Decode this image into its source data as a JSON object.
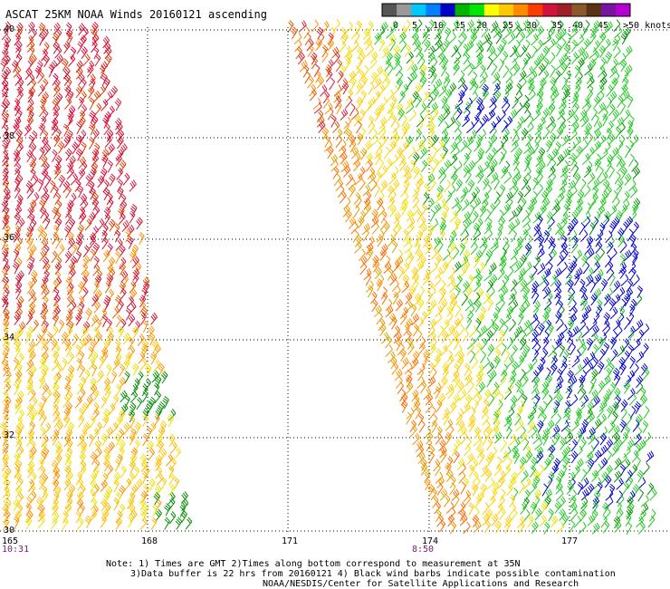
{
  "title": "ASCAT 25KM NOAA Winds 20160121 ascending",
  "legend": {
    "colors": [
      "#555555",
      "#999999",
      "#00c8ff",
      "#0080ff",
      "#0000c8",
      "#00b400",
      "#00e600",
      "#ffff00",
      "#ffc800",
      "#ff8c00",
      "#ff3c00",
      "#d2143c",
      "#a01e28",
      "#8b5a2b",
      "#5a3214",
      "#7814a0",
      "#b400d2"
    ],
    "labels": [
      "0",
      "5",
      "10",
      "15",
      "20",
      "25",
      "30",
      "35",
      "40",
      "45",
      ">50 knots"
    ]
  },
  "lat_labels": [
    "40",
    "38",
    "36",
    "34",
    "32",
    "30"
  ],
  "lon_labels": [
    "165",
    "168",
    "171",
    "174",
    "177"
  ],
  "pass_times": [
    "10:31",
    "8:50"
  ],
  "notes": [
    "Note: 1) Times are GMT 2)Times along bottom correspond to measurement at 35N",
    "3)Data buffer is 22 hrs from 20160121 4) Black wind barbs indicate possible contamination",
    "NOAA/NESDIS/Center for Satellite Applications and Research"
  ]
}
